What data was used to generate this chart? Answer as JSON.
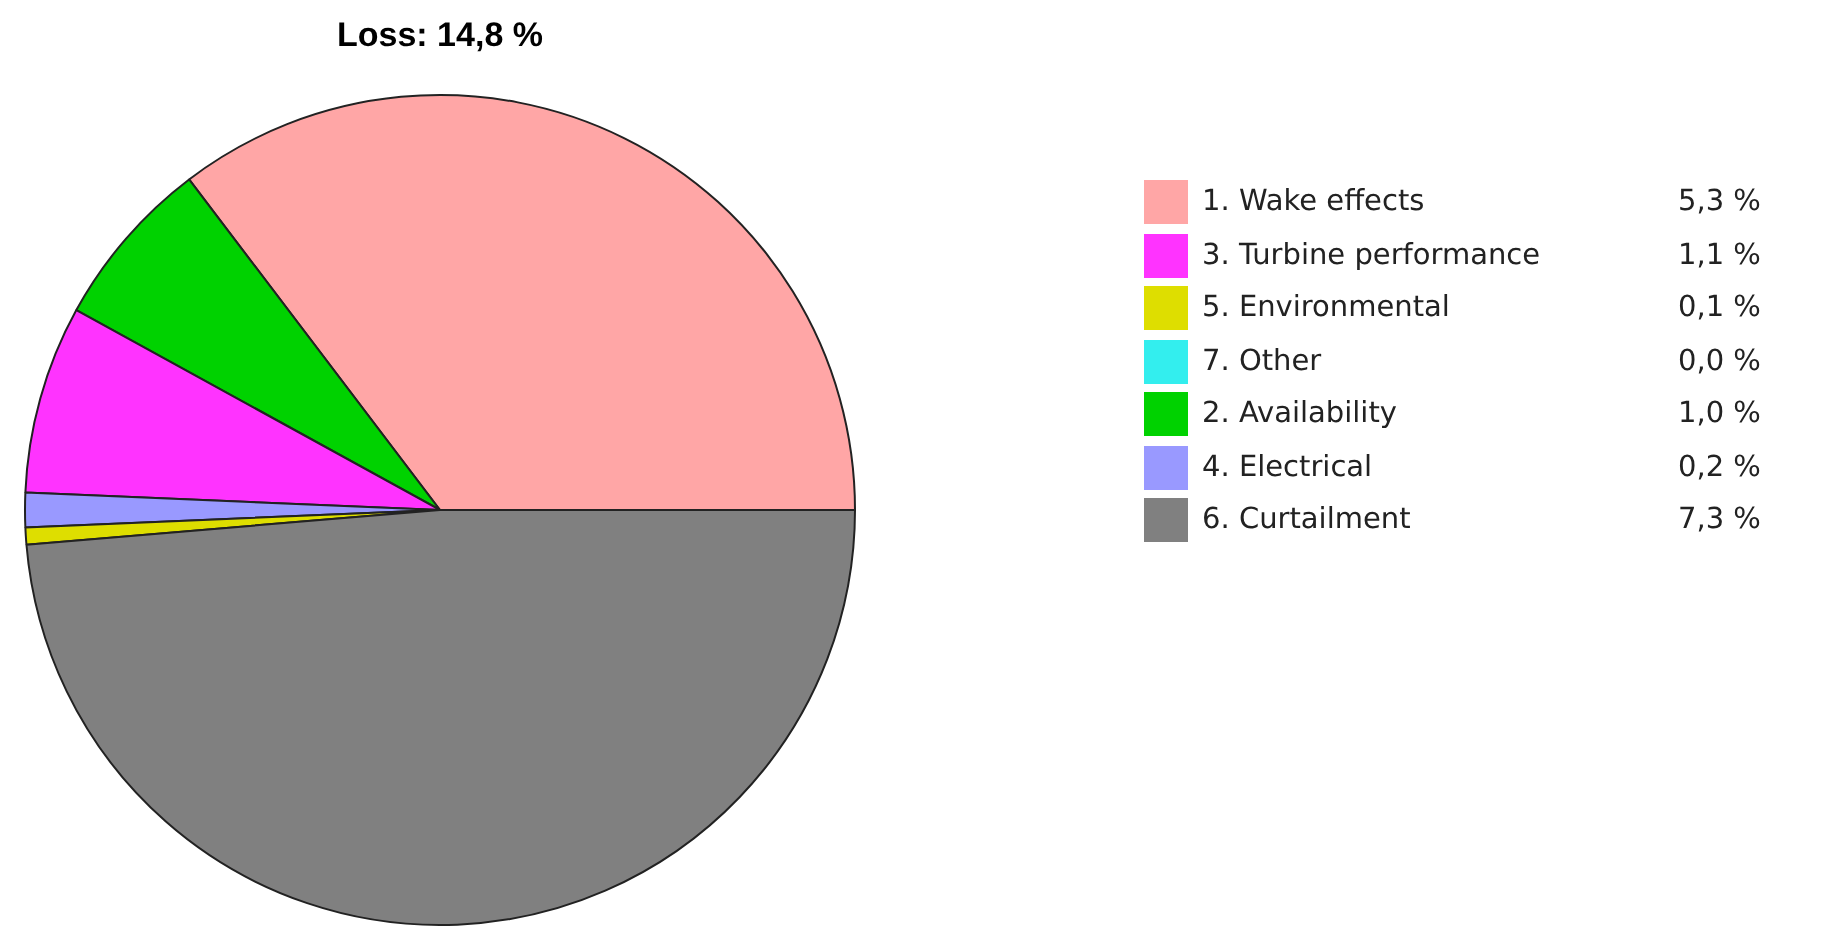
{
  "chart_data": {
    "type": "pie",
    "title": "Loss: 14,8 %",
    "categories": [
      "1. Wake effects",
      "2. Availability",
      "3. Turbine performance",
      "4. Electrical",
      "5. Environmental",
      "6. Curtailment",
      "7. Other"
    ],
    "values": [
      5.3,
      1.0,
      1.1,
      0.2,
      0.1,
      7.3,
      0.0
    ],
    "value_labels": [
      "5,3 %",
      "1,0 %",
      "1,1 %",
      "0,2 %",
      "0,1 %",
      "7,3 %",
      "0,0 %"
    ],
    "colors": [
      "#ffa6a6",
      "#00d200",
      "#ff33ff",
      "#9999ff",
      "#dede00",
      "#808080",
      "#33eeee"
    ],
    "legend": "right"
  }
}
